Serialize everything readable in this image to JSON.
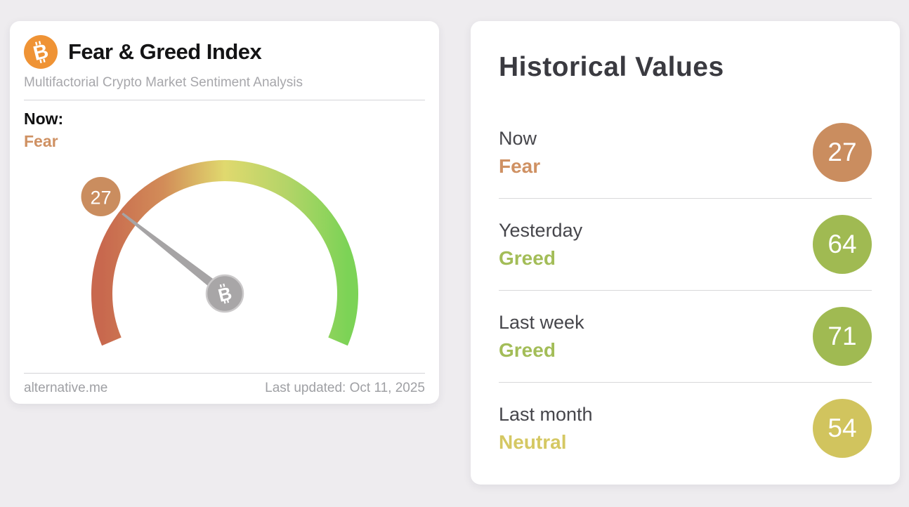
{
  "gauge_card": {
    "title": "Fear & Greed Index",
    "subtitle": "Multifactorial Crypto Market Sentiment Analysis",
    "now_label": "Now:",
    "now_classification": "Fear",
    "value": 27,
    "value_label": "27",
    "source": "alternative.me",
    "last_updated": "Last updated: Oct 11, 2025",
    "classification_color": "#cf9163",
    "badge_color": "#ca8d5f",
    "bitcoin_icon_color": "#ef9335",
    "gauge": {
      "min": 0,
      "max": 100,
      "start_angle": 203,
      "sweep": 226,
      "gradient": [
        "#c8684e",
        "#d28c58",
        "#e0d96e",
        "#b4d468",
        "#7cd356"
      ],
      "needle_color": "#a6a4a5",
      "hub_color": "#a8a6a7",
      "hub_ring_color": "#cbc9ca"
    }
  },
  "history_card": {
    "title": "Historical Values",
    "rows": [
      {
        "label": "Now",
        "classification": "Fear",
        "value": "27",
        "color": "#cf9163",
        "badge_color": "#ca8d5f"
      },
      {
        "label": "Yesterday",
        "classification": "Greed",
        "value": "64",
        "color": "#a3bd58",
        "badge_color": "#a0ba52"
      },
      {
        "label": "Last week",
        "classification": "Greed",
        "value": "71",
        "color": "#a3bd58",
        "badge_color": "#a0ba52"
      },
      {
        "label": "Last month",
        "classification": "Neutral",
        "value": "54",
        "color": "#d5c863",
        "badge_color": "#d1c45e"
      }
    ]
  },
  "chart_data": {
    "type": "gauge",
    "title": "Fear & Greed Index",
    "value": 27,
    "range": [
      0,
      100
    ],
    "classification": "Fear",
    "historical": [
      {
        "label": "Now",
        "value": 27,
        "classification": "Fear"
      },
      {
        "label": "Yesterday",
        "value": 64,
        "classification": "Greed"
      },
      {
        "label": "Last week",
        "value": 71,
        "classification": "Greed"
      },
      {
        "label": "Last month",
        "value": 54,
        "classification": "Neutral"
      }
    ]
  }
}
